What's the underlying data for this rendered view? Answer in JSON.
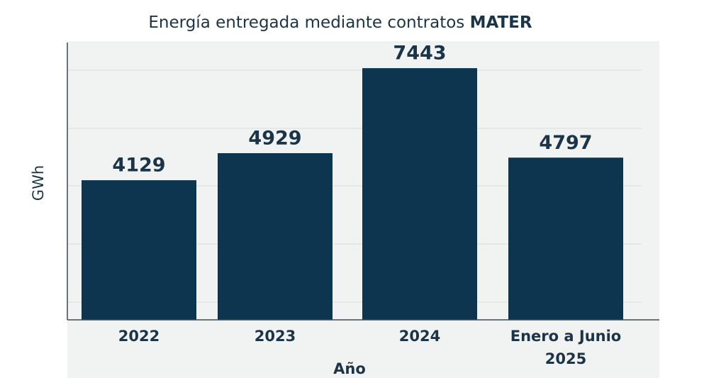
{
  "chart_data": {
    "type": "bar",
    "title": "Energía entregada mediante contratos",
    "title_emphasis": "MATER",
    "categories": [
      "2022",
      "2023",
      "2024",
      "Enero a Junio 2025"
    ],
    "values": [
      4129,
      4929,
      7443,
      4797
    ],
    "color": "#0d3550",
    "ylim": [
      0,
      8200
    ],
    "y_label": "GWh",
    "x_label": "Año"
  }
}
